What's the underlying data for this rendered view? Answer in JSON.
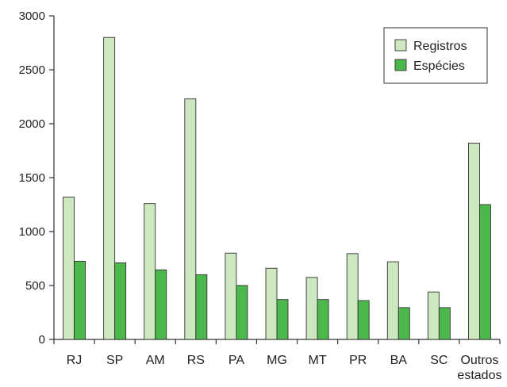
{
  "chart_data": {
    "type": "bar",
    "categories": [
      "RJ",
      "SP",
      "AM",
      "RS",
      "PA",
      "MG",
      "MT",
      "PR",
      "BA",
      "SC",
      "Outros estados"
    ],
    "series": [
      {
        "name": "Registros",
        "color": "#cde8c0",
        "values": [
          1320,
          2800,
          1260,
          2230,
          800,
          660,
          575,
          795,
          720,
          440,
          1820
        ]
      },
      {
        "name": "Espécies",
        "color": "#4cb84c",
        "values": [
          725,
          710,
          645,
          600,
          500,
          370,
          370,
          360,
          295,
          295,
          1250
        ]
      }
    ],
    "yticks": [
      0,
      500,
      1000,
      1500,
      2000,
      2500,
      3000
    ],
    "ylim": [
      0,
      3000
    ],
    "title": "",
    "xlabel": "",
    "ylabel": "",
    "legend_position": "top-right",
    "grid": false
  }
}
